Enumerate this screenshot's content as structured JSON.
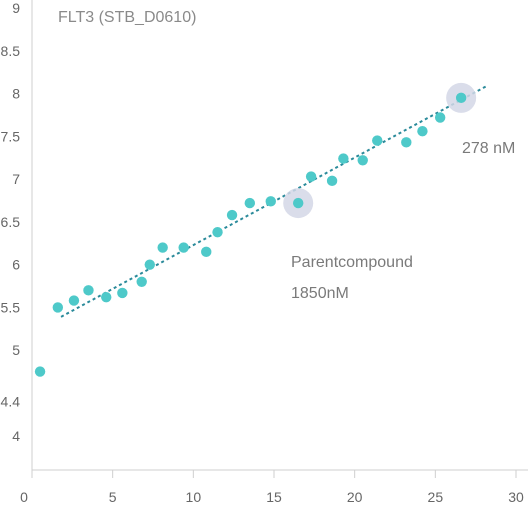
{
  "chart_data": {
    "type": "scatter",
    "title": "FLT3 (STB_D0610)",
    "xlabel": "",
    "ylabel": "",
    "xlim": [
      0,
      30
    ],
    "ylim": [
      3.6,
      9
    ],
    "x_ticks": [
      "0",
      "5",
      "10",
      "15",
      "20",
      "25",
      "30"
    ],
    "y_ticks": [
      "4",
      "4.4",
      "5",
      "5.5",
      "6",
      "6.5",
      "7",
      "7.5",
      "8",
      "8.5",
      "9"
    ],
    "grid": false,
    "colors": {
      "points": "#4ec9c9",
      "trend": "#2a8a9a",
      "highlight": "#d4d7e6"
    },
    "points": [
      {
        "x": 0.5,
        "y": 4.75
      },
      {
        "x": 1.6,
        "y": 5.5
      },
      {
        "x": 2.6,
        "y": 5.58
      },
      {
        "x": 3.5,
        "y": 5.7
      },
      {
        "x": 4.6,
        "y": 5.62
      },
      {
        "x": 5.6,
        "y": 5.67
      },
      {
        "x": 6.8,
        "y": 5.8
      },
      {
        "x": 7.3,
        "y": 6.0
      },
      {
        "x": 8.1,
        "y": 6.2
      },
      {
        "x": 9.4,
        "y": 6.2
      },
      {
        "x": 10.8,
        "y": 6.15
      },
      {
        "x": 11.5,
        "y": 6.38
      },
      {
        "x": 12.4,
        "y": 6.58
      },
      {
        "x": 13.5,
        "y": 6.72
      },
      {
        "x": 14.8,
        "y": 6.74
      },
      {
        "x": 16.5,
        "y": 6.72
      },
      {
        "x": 17.3,
        "y": 7.03
      },
      {
        "x": 18.6,
        "y": 6.98
      },
      {
        "x": 19.3,
        "y": 7.24
      },
      {
        "x": 20.5,
        "y": 7.22
      },
      {
        "x": 21.4,
        "y": 7.45
      },
      {
        "x": 23.2,
        "y": 7.43
      },
      {
        "x": 24.2,
        "y": 7.56
      },
      {
        "x": 25.3,
        "y": 7.72
      },
      {
        "x": 26.6,
        "y": 7.95
      }
    ],
    "trendline": {
      "x": [
        1.8,
        28.2
      ],
      "y": [
        5.39,
        8.09
      ]
    },
    "highlights": [
      {
        "x": 16.5,
        "y": 6.72,
        "label_lines": [
          "Parentcompound",
          "1850nM"
        ]
      },
      {
        "x": 26.6,
        "y": 7.95,
        "label_lines": [
          "278 nM"
        ]
      }
    ]
  }
}
